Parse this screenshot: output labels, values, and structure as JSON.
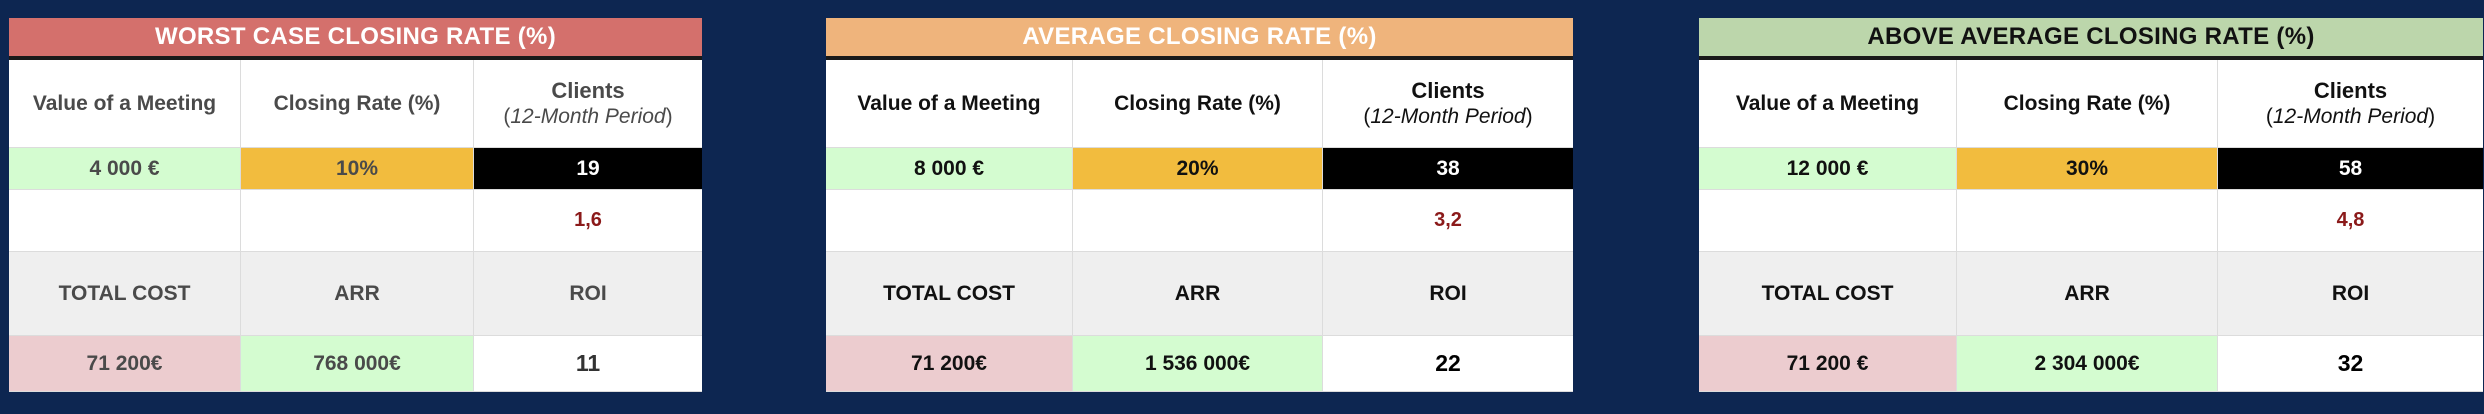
{
  "colors": {
    "background": "#0d2651",
    "worst_header": "#d4706c",
    "average_header": "#efb47c",
    "above_header": "#bcd6ab",
    "meeting_value_bg": "#d4fcd0",
    "closing_rate_bg": "#f2bc3e",
    "clients_bg": "#000000",
    "total_cost_bg": "#eccccf",
    "arr_bg": "#d4fcd0"
  },
  "panels": [
    {
      "title": "WORST CASE CLOSING RATE (%)",
      "col_value": "Value of a Meeting",
      "col_rate": "Closing Rate (%)",
      "col_clients": "Clients",
      "col_clients_sub_open": "(",
      "col_clients_sub_italic": "12-Month Period",
      "col_clients_sub_close": ")",
      "meeting_value": "4 000 €",
      "closing_rate": "10%",
      "clients": "19",
      "monthly": "1,6",
      "label_total_cost": "TOTAL COST",
      "label_arr": "ARR",
      "label_roi": "ROI",
      "total_cost": "71 200€",
      "arr": "768 000€",
      "roi": "11"
    },
    {
      "title": "AVERAGE CLOSING RATE (%)",
      "col_value": "Value of a Meeting",
      "col_rate": "Closing Rate (%)",
      "col_clients": "Clients",
      "col_clients_sub_open": "(",
      "col_clients_sub_italic": "12-Month Period",
      "col_clients_sub_close": ")",
      "meeting_value": "8 000 €",
      "closing_rate": "20%",
      "clients": "38",
      "monthly": "3,2",
      "label_total_cost": "TOTAL COST",
      "label_arr": "ARR",
      "label_roi": "ROI",
      "total_cost": "71 200€",
      "arr": "1 536 000€",
      "roi": "22"
    },
    {
      "title": "ABOVE AVERAGE CLOSING RATE (%)",
      "col_value": "Value of a Meeting",
      "col_rate": "Closing Rate (%)",
      "col_clients": "Clients",
      "col_clients_sub_open": "(",
      "col_clients_sub_italic": "12-Month Period",
      "col_clients_sub_close": ")",
      "meeting_value": "12 000 €",
      "closing_rate": "30%",
      "clients": "58",
      "monthly": "4,8",
      "label_total_cost": "TOTAL COST",
      "label_arr": "ARR",
      "label_roi": "ROI",
      "total_cost": "71 200 €",
      "arr": "2 304 000€",
      "roi": "32"
    }
  ]
}
